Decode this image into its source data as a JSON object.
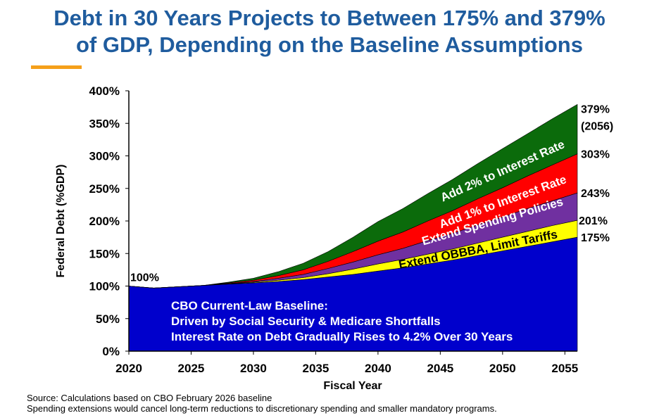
{
  "chart_data": {
    "type": "stacked_area",
    "title_lines": [
      "Debt in 30 Years Projects to Between 175% and 379%",
      "of GDP, Depending on the Baseline Assumptions"
    ],
    "x_label": "Fiscal Year",
    "y_label": "Federal Debt (%GDP)",
    "x": [
      2020,
      2022,
      2024,
      2026,
      2028,
      2030,
      2032,
      2034,
      2036,
      2038,
      2040,
      2042,
      2044,
      2046,
      2048,
      2050,
      2052,
      2054,
      2056
    ],
    "series": [
      {
        "name": "CBO Current-Law Baseline:",
        "color": "#0000cc",
        "text_color": "#ffffff",
        "values": [
          100,
          97,
          99,
          101,
          103,
          105,
          107,
          110,
          114,
          118,
          123,
          128,
          134,
          140,
          147,
          154,
          161,
          168,
          175
        ]
      },
      {
        "name": "Extend OBBBA, Limit Tariffs",
        "color": "#ffff00",
        "text_color": "#000000",
        "values": [
          0,
          0,
          0,
          0,
          0.5,
          1,
          2,
          3,
          5,
          8,
          11,
          13,
          15,
          17,
          19,
          21,
          23,
          25,
          26
        ]
      },
      {
        "name": "Extend Spending Policies",
        "color": "#7030a0",
        "text_color": "#ffffff",
        "values": [
          0,
          0,
          0,
          0,
          0.5,
          1,
          3,
          5,
          8,
          11,
          14,
          17,
          21,
          24,
          28,
          31,
          35,
          38,
          42
        ]
      },
      {
        "name": "Add 1% to Interest Rate",
        "color": "#ff0000",
        "text_color": "#ffffff",
        "values": [
          0,
          0,
          0,
          0,
          1,
          2,
          4,
          7,
          11,
          16,
          21,
          25,
          30,
          35,
          40,
          45,
          50,
          55,
          60
        ]
      },
      {
        "name": "Add 2% to Interest Rate",
        "color": "#0b6b0b",
        "text_color": "#ffffff",
        "values": [
          0,
          0,
          0,
          0,
          1,
          3,
          6,
          10,
          15,
          22,
          30,
          36,
          42,
          48,
          54,
          60,
          65,
          71,
          76
        ]
      }
    ],
    "baseline_notes": [
      "Driven by Social Security & Medicare Shortfalls",
      "Interest Rate on Debt Gradually Rises to 4.2% Over 30 Years"
    ],
    "start_label": "100%",
    "end_labels": [
      "175%",
      "201%",
      "243%",
      "303%",
      "379%"
    ],
    "end_year_label": "(2056)",
    "xlim": [
      2020,
      2056
    ],
    "xticks": [
      2020,
      2025,
      2030,
      2035,
      2040,
      2045,
      2050,
      2055
    ],
    "ylim": [
      0,
      400
    ],
    "yticks": [
      {
        "value": 0,
        "label": "0%"
      },
      {
        "value": 50,
        "label": "50%"
      },
      {
        "value": 100,
        "label": "100%"
      },
      {
        "value": 150,
        "label": "150%"
      },
      {
        "value": 200,
        "label": "200%"
      },
      {
        "value": 250,
        "label": "250%"
      },
      {
        "value": 300,
        "label": "300%"
      },
      {
        "value": 350,
        "label": "350%"
      },
      {
        "value": 400,
        "label": "400%"
      }
    ],
    "footnotes": [
      "Source: Calculations based on CBO February 2026 baseline",
      "Spending extensions would cancel long-term reductions to discretionary spending and smaller mandatory programs."
    ]
  }
}
